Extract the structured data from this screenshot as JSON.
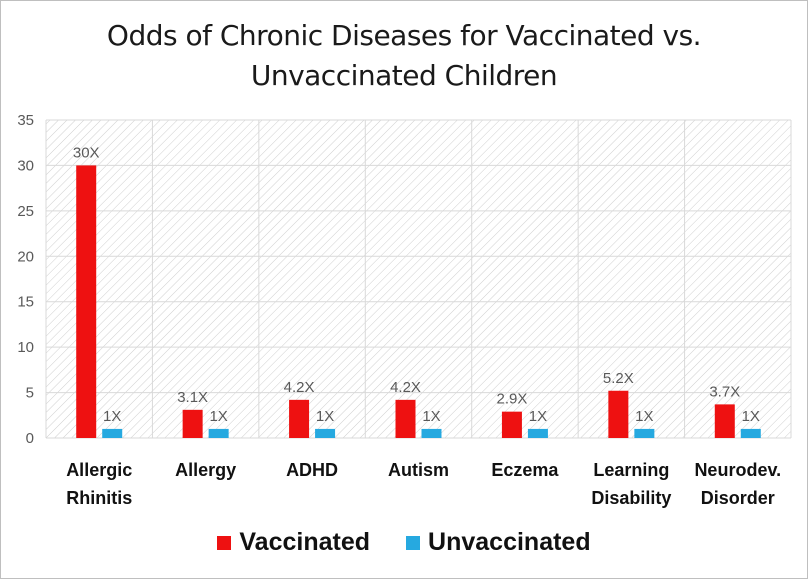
{
  "colors": {
    "vaccinated": "#ee1111",
    "unvaccinated": "#26a9e0",
    "grid": "#d9d9d9",
    "axis_text": "#595959"
  },
  "chart_data": {
    "type": "bar",
    "title_lines": [
      "Odds of Chronic Diseases for Vaccinated vs.",
      "Unvaccinated Children"
    ],
    "categories": [
      [
        "Allergic",
        "Rhinitis"
      ],
      [
        "Allergy"
      ],
      [
        "ADHD"
      ],
      [
        "Autism"
      ],
      [
        "Eczema"
      ],
      [
        "Learning",
        "Disability"
      ],
      [
        "Neurodev.",
        "Disorder"
      ]
    ],
    "series": [
      {
        "name": "Vaccinated",
        "values": [
          30,
          3.1,
          4.2,
          4.2,
          2.9,
          5.2,
          3.7
        ],
        "labels": [
          "30X",
          "3.1X",
          "4.2X",
          "4.2X",
          "2.9X",
          "5.2X",
          "3.7X"
        ]
      },
      {
        "name": "Unvaccinated",
        "values": [
          1,
          1,
          1,
          1,
          1,
          1,
          1
        ],
        "labels": [
          "1X",
          "1X",
          "1X",
          "1X",
          "1X",
          "1X",
          "1X"
        ]
      }
    ],
    "ylim": [
      0,
      35
    ],
    "yticks": [
      0,
      5,
      10,
      15,
      20,
      25,
      30,
      35
    ],
    "grid": true,
    "legend_position": "bottom"
  }
}
